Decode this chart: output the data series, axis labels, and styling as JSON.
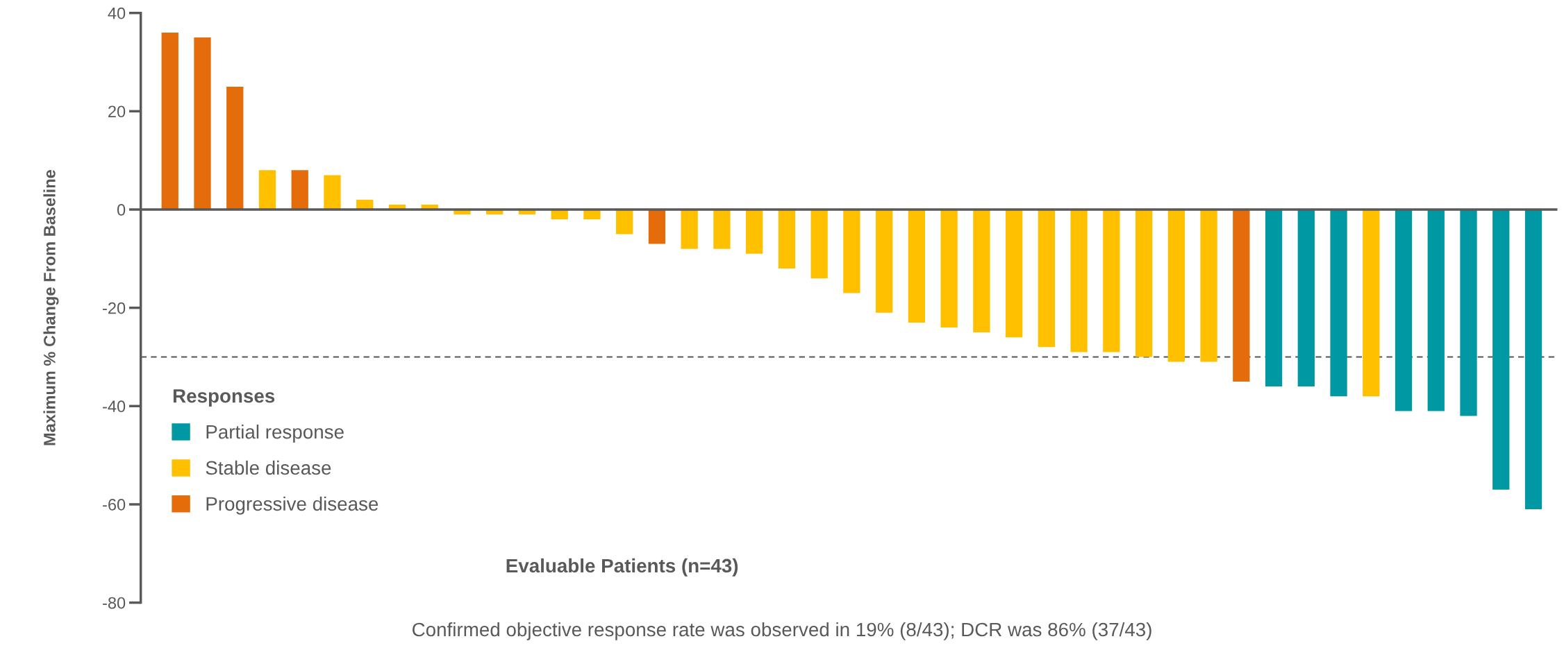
{
  "chart_data": {
    "type": "bar",
    "ylabel": "Maximum % Change From Baseline",
    "xlabel": "Evaluable Patients (n=43)",
    "legend_title": "Responses",
    "categories": [
      null,
      null,
      null,
      null,
      null,
      null,
      null,
      null,
      null,
      null,
      null,
      null,
      null,
      null,
      null,
      null,
      null,
      null,
      null,
      null,
      null,
      null,
      null,
      null,
      null,
      null,
      null,
      null,
      null,
      null,
      null,
      null,
      null,
      null,
      null,
      null,
      null,
      null,
      null,
      null,
      null,
      null,
      null
    ],
    "stacked": true,
    "series": [
      {
        "name": "Partial response",
        "color": "#0099a3",
        "values": [
          null,
          null,
          null,
          null,
          null,
          null,
          null,
          null,
          null,
          null,
          null,
          null,
          null,
          null,
          null,
          null,
          null,
          null,
          null,
          null,
          null,
          null,
          null,
          null,
          null,
          null,
          null,
          null,
          null,
          null,
          null,
          null,
          null,
          null,
          -36,
          -36,
          -38,
          null,
          -41,
          -41,
          -42,
          -57,
          -61
        ]
      },
      {
        "name": "Stable disease",
        "color": "#ffc000",
        "values": [
          null,
          null,
          null,
          8,
          null,
          7,
          2,
          1,
          1,
          -1,
          -1,
          -1,
          -2,
          -2,
          -5,
          null,
          -8,
          -8,
          -9,
          -12,
          -14,
          -17,
          -21,
          -23,
          -24,
          -25,
          -26,
          -28,
          -29,
          -29,
          -30,
          -31,
          -31,
          null,
          null,
          null,
          null,
          -38,
          null,
          null,
          null,
          null,
          null
        ]
      },
      {
        "name": "Progressive disease",
        "color": "#e46c0a",
        "values": [
          36,
          35,
          25,
          null,
          8,
          null,
          null,
          null,
          null,
          null,
          null,
          null,
          null,
          null,
          null,
          -7,
          null,
          null,
          null,
          null,
          null,
          null,
          null,
          null,
          null,
          null,
          null,
          null,
          null,
          null,
          null,
          null,
          null,
          -35,
          null,
          null,
          null,
          null,
          null,
          null,
          null,
          null,
          null
        ]
      }
    ],
    "ylim": [
      -80,
      40
    ],
    "yticks": [
      -80,
      -60,
      -40,
      -20,
      0,
      20,
      40
    ],
    "ref_lines": [
      {
        "axis": "y",
        "value": -30,
        "color": "#555555",
        "line_style": "dashed"
      }
    ],
    "legend": "bottom left",
    "tick_labels": "y",
    "annotations": [
      "Confirmed objective response rate was observed in 19% (8/43); DCR was 86% (37/43)"
    ]
  }
}
